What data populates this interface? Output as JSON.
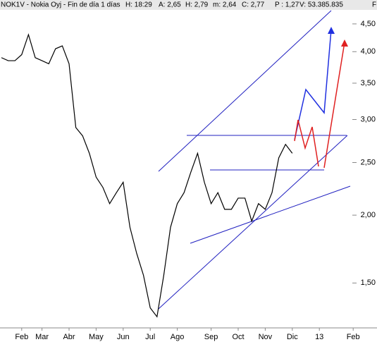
{
  "header": {
    "parts": [
      "NOK1V - Nokia Oyj - Fin de día 1 días",
      "H: 18:29",
      "A: 2,65",
      "H: 2,79",
      "m: 2,64",
      "C: 2,77",
      "P : 1,27",
      "V: 53.385.835",
      "F:"
    ]
  },
  "chart_data": {
    "type": "line",
    "log": true,
    "grid": false,
    "color": "#000000",
    "categories": [
      null,
      null,
      null,
      "Feb",
      null,
      null,
      "Mar",
      null,
      null,
      null,
      "Abr",
      null,
      null,
      null,
      "May",
      null,
      null,
      null,
      "Jun",
      null,
      null,
      null,
      "Jul",
      null,
      null,
      null,
      "Ago",
      null,
      null,
      null,
      null,
      "Sep",
      null,
      null,
      null,
      "Oct",
      null,
      null,
      null,
      "Nov",
      null,
      null,
      null,
      "Dic",
      null,
      null,
      null,
      "13",
      null,
      null,
      null,
      null,
      "Feb",
      null,
      null
    ],
    "values": [
      3.9,
      3.85,
      3.85,
      3.95,
      4.3,
      3.9,
      3.85,
      3.8,
      4.05,
      4.1,
      3.8,
      2.9,
      2.8,
      2.6,
      2.35,
      2.25,
      2.1,
      2.2,
      2.3,
      1.9,
      1.7,
      1.55,
      1.35,
      1.3,
      1.55,
      1.9,
      2.1,
      2.2,
      2.4,
      2.6,
      2.3,
      2.1,
      2.2,
      2.05,
      2.05,
      2.15,
      2.15,
      1.95,
      2.1,
      2.05,
      2.2,
      2.55,
      2.7,
      2.6,
      null,
      null,
      null,
      null,
      null,
      null,
      null,
      null,
      null,
      null,
      null
    ],
    "ylim": [
      1.24,
      4.98
    ],
    "yticks": [
      {
        "value": 1.5,
        "label": "1,50"
      },
      {
        "value": 2,
        "label": "2,00"
      },
      {
        "value": 2.5,
        "label": "2,50"
      },
      {
        "value": 3,
        "label": "3,00"
      },
      {
        "value": 3.5,
        "label": "3,50"
      },
      {
        "value": 4,
        "label": "4,00"
      },
      {
        "value": 4.5,
        "label": "4,50"
      }
    ]
  }
}
